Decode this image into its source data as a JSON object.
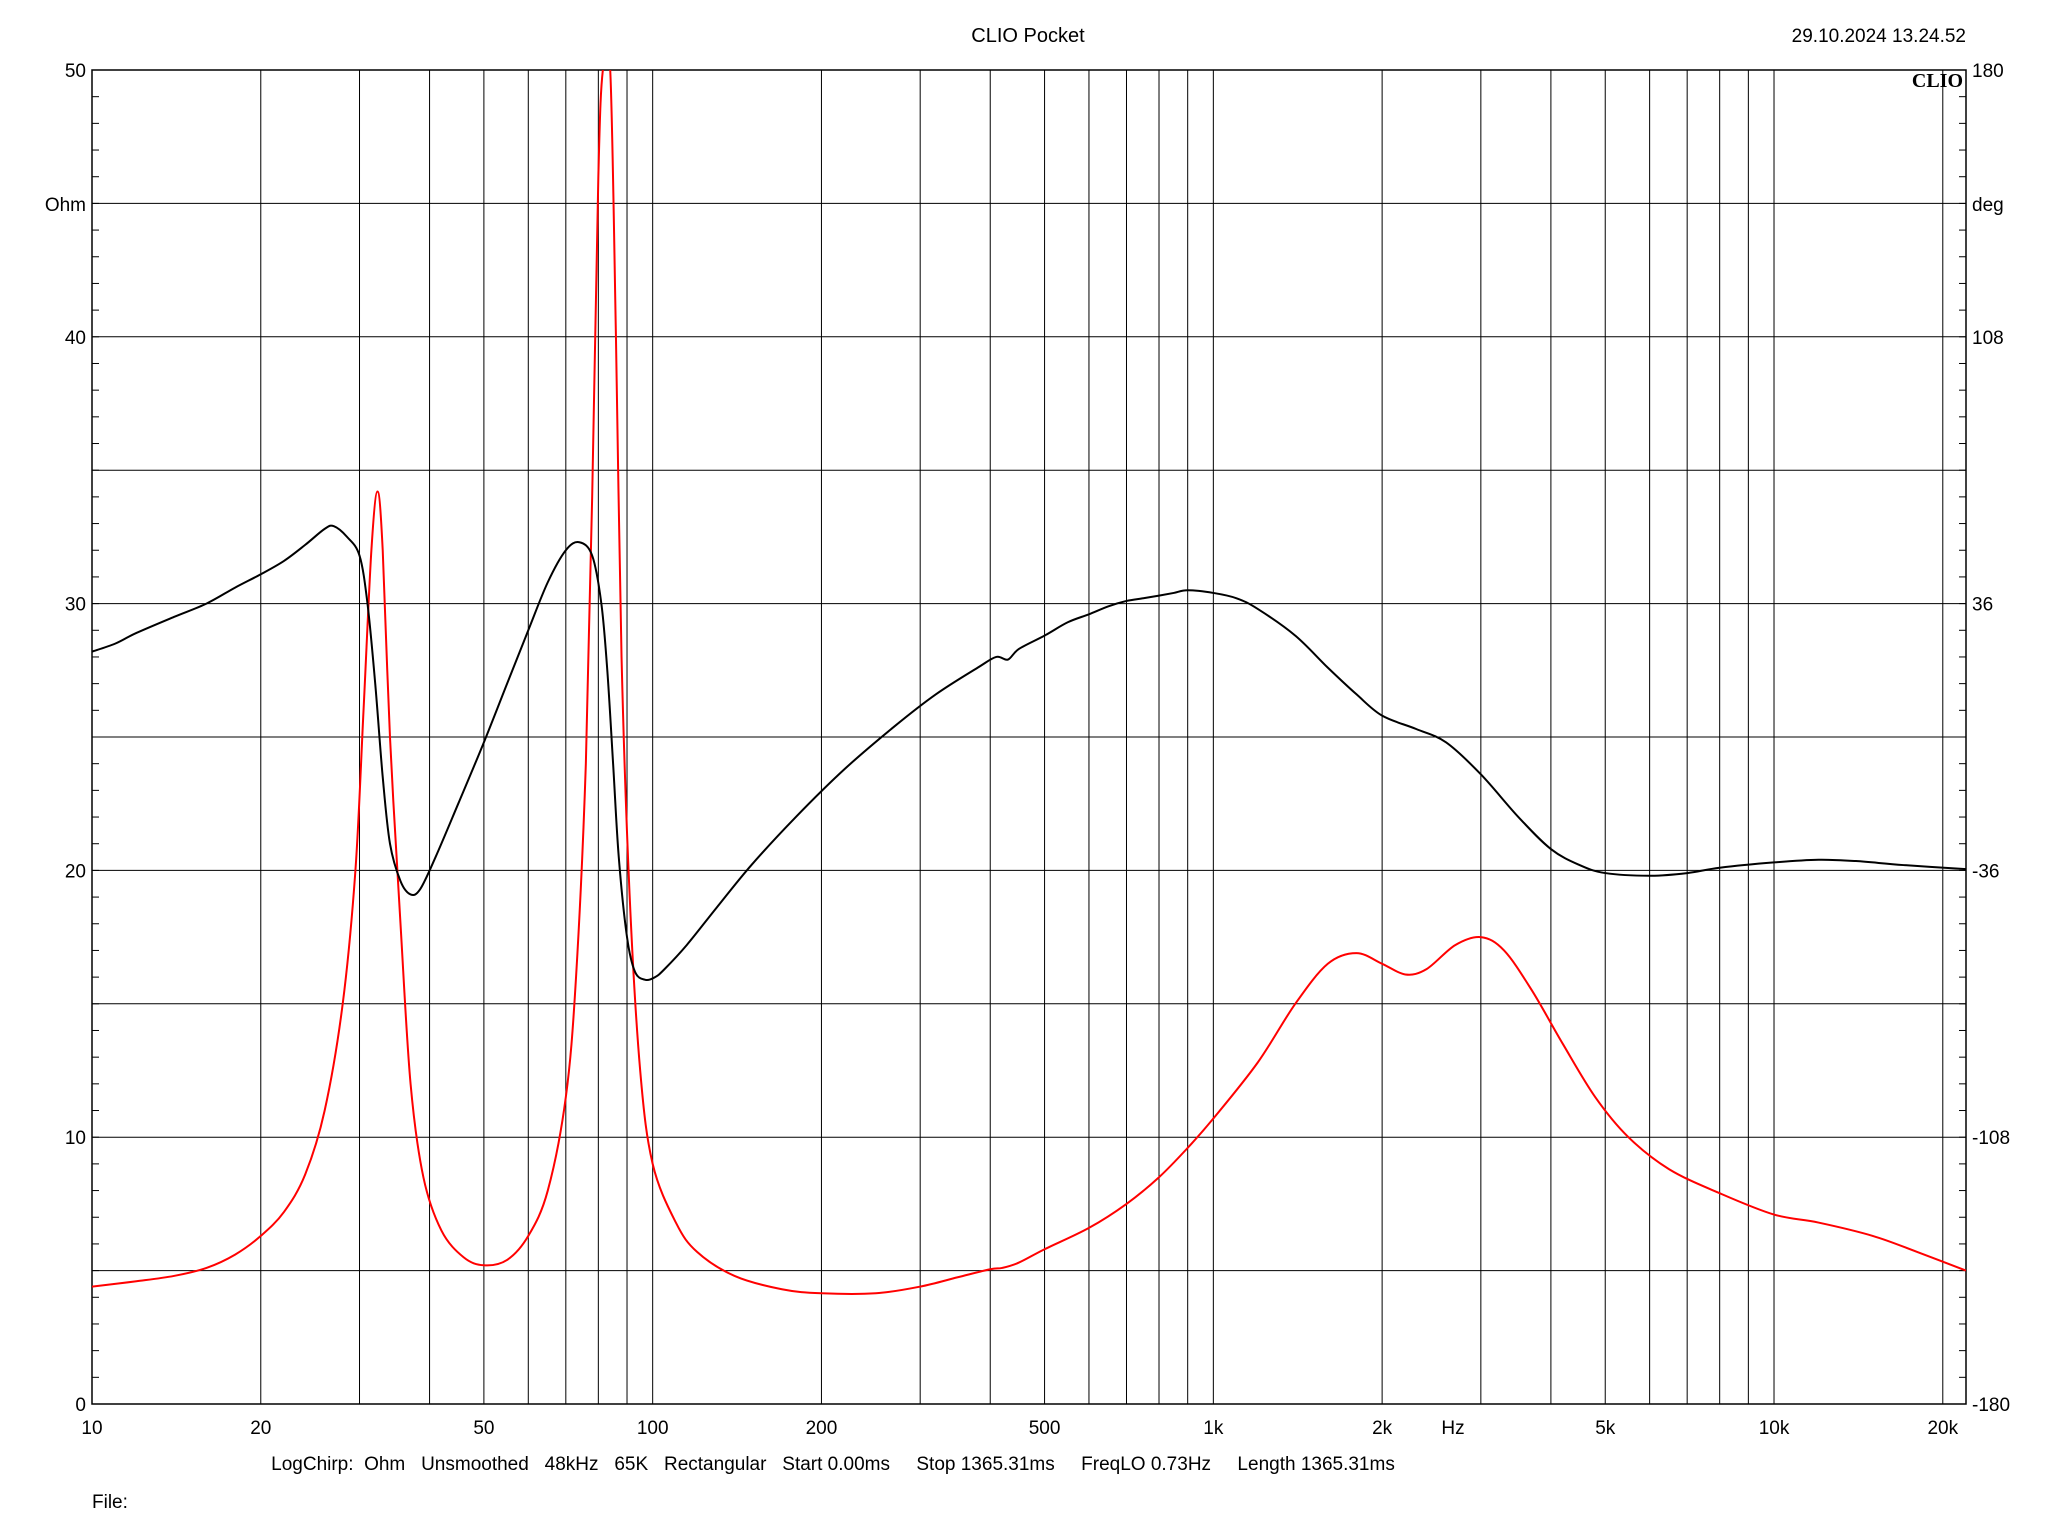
{
  "header": {
    "app_title": "CLIO Pocket",
    "timestamp": "29.10.2024 13.24.52",
    "logo_text": "CLIO"
  },
  "footer": {
    "settings_line": "LogChirp:  Ohm   Unsmoothed   48kHz   65K   Rectangular   Start 0.00ms     Stop 1365.31ms     FreqLO 0.73Hz     Length 1365.31ms",
    "file_label": "File:"
  },
  "chart_data": {
    "type": "line",
    "x_scale": "log",
    "xlim": [
      10,
      22000
    ],
    "x_unit_label": "Hz",
    "x_ticks": [
      {
        "value": 10,
        "label": "10"
      },
      {
        "value": 20,
        "label": "20"
      },
      {
        "value": 50,
        "label": "50"
      },
      {
        "value": 100,
        "label": "100"
      },
      {
        "value": 200,
        "label": "200"
      },
      {
        "value": 500,
        "label": "500"
      },
      {
        "value": 1000,
        "label": "1k"
      },
      {
        "value": 2000,
        "label": "2k"
      },
      {
        "value": 5000,
        "label": "5k"
      },
      {
        "value": 10000,
        "label": "10k"
      },
      {
        "value": 20000,
        "label": "20k"
      }
    ],
    "x_minor_grid": [
      30,
      40,
      60,
      70,
      80,
      90,
      300,
      400,
      600,
      700,
      800,
      900,
      3000,
      4000,
      6000,
      7000,
      8000,
      9000
    ],
    "left_axis": {
      "unit_label": "Ohm",
      "ylim": [
        0,
        50
      ],
      "ticks": [
        {
          "value": 0,
          "label": "0"
        },
        {
          "value": 10,
          "label": "10"
        },
        {
          "value": 20,
          "label": "20"
        },
        {
          "value": 30,
          "label": "30"
        },
        {
          "value": 40,
          "label": "40"
        },
        {
          "value": 50,
          "label": "50"
        }
      ]
    },
    "right_axis": {
      "unit_label": "deg",
      "ylim": [
        -180,
        180
      ],
      "ticks": [
        {
          "value": -180,
          "label": "-180"
        },
        {
          "value": -108,
          "label": "-108"
        },
        {
          "value": -36,
          "label": "-36"
        },
        {
          "value": 36,
          "label": "36"
        },
        {
          "value": 108,
          "label": "108"
        },
        {
          "value": 180,
          "label": "180"
        }
      ]
    },
    "grid": true,
    "series": [
      {
        "axis": "left",
        "color": "#ff0000",
        "points": [
          [
            10,
            4.4
          ],
          [
            12,
            4.6
          ],
          [
            14,
            4.8
          ],
          [
            16,
            5.1
          ],
          [
            18,
            5.6
          ],
          [
            20,
            6.3
          ],
          [
            22,
            7.2
          ],
          [
            24,
            8.6
          ],
          [
            26,
            11.0
          ],
          [
            28,
            15.0
          ],
          [
            29.5,
            20.0
          ],
          [
            30.5,
            26.0
          ],
          [
            31.5,
            32.0
          ],
          [
            32.3,
            34.2
          ],
          [
            33,
            32.0
          ],
          [
            34,
            25.0
          ],
          [
            35.5,
            18.0
          ],
          [
            37,
            12.0
          ],
          [
            39,
            8.5
          ],
          [
            42,
            6.5
          ],
          [
            46,
            5.5
          ],
          [
            50,
            5.2
          ],
          [
            55,
            5.4
          ],
          [
            60,
            6.3
          ],
          [
            65,
            8.0
          ],
          [
            70,
            11.5
          ],
          [
            73,
            16.0
          ],
          [
            76,
            24.0
          ],
          [
            78,
            34.0
          ],
          [
            80,
            46.0
          ],
          [
            81.5,
            50.0
          ],
          [
            84,
            50.0
          ],
          [
            86,
            40.0
          ],
          [
            88,
            28.0
          ],
          [
            91,
            19.0
          ],
          [
            95,
            12.5
          ],
          [
            100,
            9.0
          ],
          [
            110,
            6.8
          ],
          [
            120,
            5.7
          ],
          [
            140,
            4.8
          ],
          [
            170,
            4.3
          ],
          [
            200,
            4.15
          ],
          [
            250,
            4.15
          ],
          [
            300,
            4.4
          ],
          [
            350,
            4.75
          ],
          [
            400,
            5.05
          ],
          [
            420,
            5.1
          ],
          [
            450,
            5.3
          ],
          [
            500,
            5.8
          ],
          [
            600,
            6.6
          ],
          [
            700,
            7.5
          ],
          [
            800,
            8.5
          ],
          [
            900,
            9.6
          ],
          [
            1000,
            10.7
          ],
          [
            1200,
            12.8
          ],
          [
            1400,
            15.0
          ],
          [
            1600,
            16.5
          ],
          [
            1800,
            16.9
          ],
          [
            2000,
            16.5
          ],
          [
            2200,
            16.1
          ],
          [
            2400,
            16.3
          ],
          [
            2700,
            17.2
          ],
          [
            3000,
            17.5
          ],
          [
            3300,
            17.0
          ],
          [
            3700,
            15.5
          ],
          [
            4200,
            13.5
          ],
          [
            4800,
            11.5
          ],
          [
            5500,
            10.0
          ],
          [
            6500,
            8.8
          ],
          [
            8000,
            7.9
          ],
          [
            10000,
            7.1
          ],
          [
            12000,
            6.8
          ],
          [
            15000,
            6.3
          ],
          [
            18000,
            5.7
          ],
          [
            22000,
            5.0
          ]
        ]
      },
      {
        "axis": "left",
        "color": "#000000",
        "points": [
          [
            10,
            28.2
          ],
          [
            11,
            28.5
          ],
          [
            12,
            28.9
          ],
          [
            14,
            29.5
          ],
          [
            16,
            30.0
          ],
          [
            18,
            30.6
          ],
          [
            20,
            31.1
          ],
          [
            22,
            31.6
          ],
          [
            24,
            32.2
          ],
          [
            26,
            32.8
          ],
          [
            27,
            32.9
          ],
          [
            28.5,
            32.5
          ],
          [
            30,
            31.8
          ],
          [
            31,
            30.0
          ],
          [
            32,
            27.0
          ],
          [
            33,
            23.5
          ],
          [
            34,
            21.0
          ],
          [
            35.5,
            19.6
          ],
          [
            37,
            19.1
          ],
          [
            38.5,
            19.3
          ],
          [
            41,
            20.5
          ],
          [
            45,
            22.5
          ],
          [
            50,
            24.8
          ],
          [
            55,
            27.0
          ],
          [
            60,
            29.0
          ],
          [
            65,
            30.8
          ],
          [
            70,
            32.0
          ],
          [
            74,
            32.3
          ],
          [
            78,
            31.8
          ],
          [
            81,
            30.0
          ],
          [
            83,
            27.5
          ],
          [
            85,
            24.0
          ],
          [
            87,
            20.5
          ],
          [
            90,
            17.5
          ],
          [
            93,
            16.2
          ],
          [
            97,
            15.9
          ],
          [
            101,
            16.0
          ],
          [
            105,
            16.3
          ],
          [
            115,
            17.2
          ],
          [
            130,
            18.6
          ],
          [
            150,
            20.2
          ],
          [
            180,
            22.0
          ],
          [
            220,
            23.8
          ],
          [
            270,
            25.4
          ],
          [
            320,
            26.6
          ],
          [
            380,
            27.6
          ],
          [
            410,
            28.0
          ],
          [
            430,
            27.9
          ],
          [
            450,
            28.3
          ],
          [
            500,
            28.8
          ],
          [
            550,
            29.3
          ],
          [
            600,
            29.6
          ],
          [
            650,
            29.9
          ],
          [
            700,
            30.1
          ],
          [
            750,
            30.2
          ],
          [
            800,
            30.3
          ],
          [
            850,
            30.4
          ],
          [
            900,
            30.5
          ],
          [
            1000,
            30.4
          ],
          [
            1100,
            30.2
          ],
          [
            1200,
            29.8
          ],
          [
            1400,
            28.8
          ],
          [
            1600,
            27.6
          ],
          [
            1800,
            26.6
          ],
          [
            2000,
            25.8
          ],
          [
            2300,
            25.3
          ],
          [
            2600,
            24.8
          ],
          [
            3000,
            23.6
          ],
          [
            3500,
            22.0
          ],
          [
            4000,
            20.8
          ],
          [
            4500,
            20.2
          ],
          [
            5000,
            19.9
          ],
          [
            6000,
            19.8
          ],
          [
            7000,
            19.9
          ],
          [
            8000,
            20.1
          ],
          [
            10000,
            20.3
          ],
          [
            12000,
            20.4
          ],
          [
            14000,
            20.35
          ],
          [
            17000,
            20.2
          ],
          [
            22000,
            20.05
          ]
        ]
      }
    ]
  }
}
